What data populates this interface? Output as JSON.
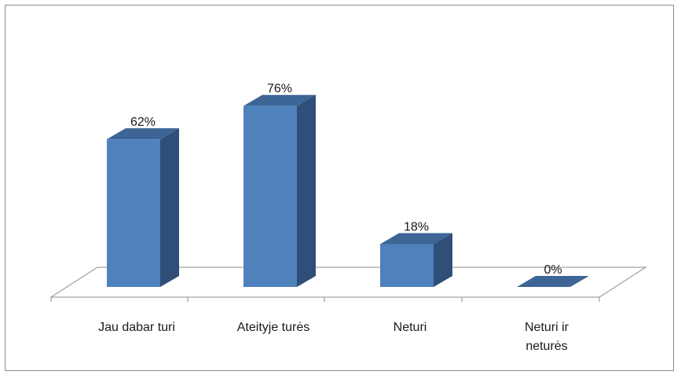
{
  "chart_data": {
    "type": "bar",
    "title": "",
    "xlabel": "",
    "ylabel": "",
    "ylim": [
      0,
      100
    ],
    "categories": [
      [
        "Jau dabar turi"
      ],
      [
        "Ateityje turės"
      ],
      [
        "Neturi"
      ],
      [
        "Neturi ir",
        "neturės"
      ]
    ],
    "values": [
      62,
      76,
      18,
      0
    ],
    "value_labels": [
      "62%",
      "76%",
      "18%",
      "0%"
    ],
    "colors": {
      "bar_front": "#4f81bd",
      "bar_side": "#2f4f78",
      "bar_top": "#3d6595"
    }
  }
}
